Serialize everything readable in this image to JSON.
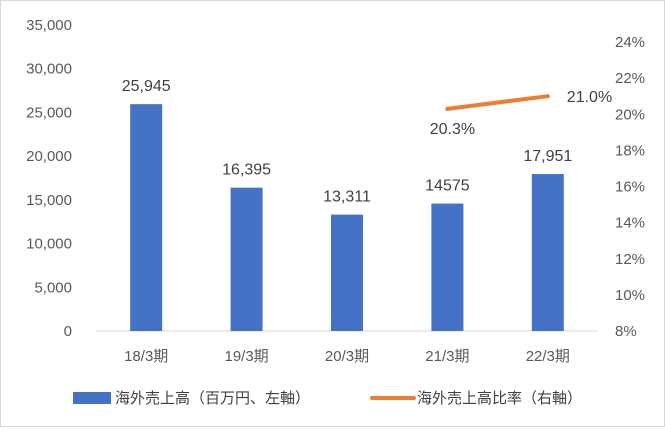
{
  "chart_data": {
    "type": "bar",
    "categories": [
      "18/3期",
      "19/3期",
      "20/3期",
      "21/3期",
      "22/3期"
    ],
    "series": [
      {
        "name": "海外売上高（百万円、左軸）",
        "type": "bar",
        "axis": "left",
        "color": "#4472C4",
        "values": [
          25945,
          16395,
          13311,
          14575,
          17951
        ],
        "labels": [
          "25,945",
          "16,395",
          "13,311",
          "14575",
          "17,951"
        ]
      },
      {
        "name": "海外売上高比率（右軸）",
        "type": "line",
        "axis": "right",
        "color": "#ED7D31",
        "values": [
          null,
          null,
          null,
          20.3,
          21.0
        ],
        "labels": [
          "",
          "",
          "",
          "20.3%",
          "21.0%"
        ]
      }
    ],
    "left_axis": {
      "ylim": [
        0,
        35000
      ],
      "ticks": [
        0,
        5000,
        10000,
        15000,
        20000,
        25000,
        30000,
        35000
      ],
      "tick_labels": [
        "0",
        "5,000",
        "10,000",
        "15,000",
        "20,000",
        "25,000",
        "30,000",
        "35,000"
      ]
    },
    "right_axis": {
      "ylim": [
        8,
        24
      ],
      "ticks": [
        8,
        10,
        12,
        14,
        16,
        18,
        20,
        22,
        24
      ],
      "tick_labels": [
        "8%",
        "10%",
        "12%",
        "14%",
        "16%",
        "18%",
        "20%",
        "22%",
        "24%"
      ]
    },
    "grid": false,
    "legend_position": "bottom"
  }
}
